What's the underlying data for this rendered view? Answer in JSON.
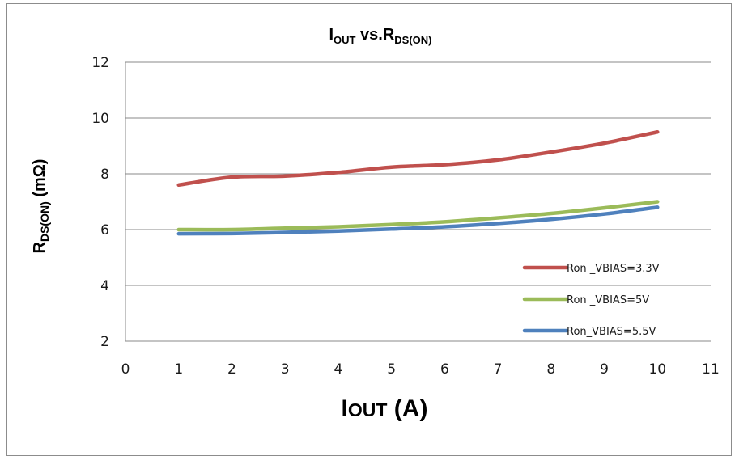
{
  "chart_data": {
    "type": "line",
    "title": {
      "main": "I",
      "main_sub": "OUT",
      "rest": " vs.R",
      "rest_sub": "DS(ON)"
    },
    "xlabel": {
      "main": "I",
      "smallcaps": "OUT",
      "rest": " (A)"
    },
    "ylabel": {
      "main": "R",
      "sub": "DS(ON)",
      "rest": " (mΩ)"
    },
    "xlim": [
      0,
      11
    ],
    "ylim": [
      2,
      12
    ],
    "xticks": [
      0,
      1,
      2,
      3,
      4,
      5,
      6,
      7,
      8,
      9,
      10,
      11
    ],
    "yticks": [
      2,
      4,
      6,
      8,
      10,
      12
    ],
    "grid": {
      "y": true,
      "x": false
    },
    "legend_position": "bottom-right",
    "series": [
      {
        "name": "Ron _VBIAS=3.3V",
        "color": "#c0504d",
        "x": [
          1,
          2,
          3,
          4,
          5,
          6,
          7,
          8,
          9,
          10
        ],
        "y": [
          7.6,
          7.88,
          7.92,
          8.05,
          8.24,
          8.33,
          8.5,
          8.78,
          9.1,
          9.5
        ]
      },
      {
        "name": "Ron _VBIAS=5V",
        "color": "#9bbb59",
        "x": [
          1,
          2,
          3,
          4,
          5,
          6,
          7,
          8,
          9,
          10
        ],
        "y": [
          6.0,
          6.0,
          6.05,
          6.1,
          6.18,
          6.28,
          6.42,
          6.58,
          6.78,
          7.0
        ]
      },
      {
        "name": "Ron_VBIAS=5.5V",
        "color": "#4f81bd",
        "x": [
          1,
          2,
          3,
          4,
          5,
          6,
          7,
          8,
          9,
          10
        ],
        "y": [
          5.85,
          5.86,
          5.9,
          5.95,
          6.02,
          6.1,
          6.22,
          6.37,
          6.56,
          6.8
        ]
      }
    ]
  }
}
